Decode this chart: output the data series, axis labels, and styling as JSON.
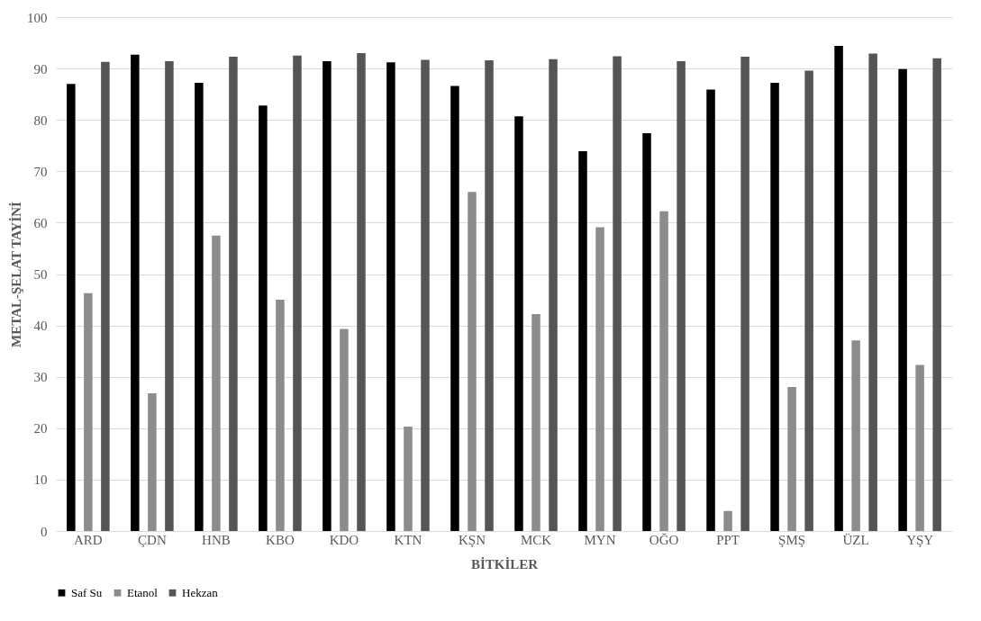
{
  "chart_data": {
    "type": "bar",
    "xlabel": "BİTKİLER",
    "ylabel": "METAL-ŞELAT TAYİNİ",
    "categories": [
      "ARD",
      "ÇDN",
      "HNB",
      "KBO",
      "KDO",
      "KTN",
      "KŞN",
      "MCK",
      "MYN",
      "OĞO",
      "PPT",
      "ŞMŞ",
      "ÜZL",
      "YŞY"
    ],
    "series": [
      {
        "name": "Saf Su",
        "color": "#000000",
        "values": [
          87,
          92.7,
          87.2,
          82.8,
          91.4,
          91.2,
          86.6,
          80.7,
          73.9,
          77.4,
          85.9,
          87.2,
          94.4,
          89.9
        ]
      },
      {
        "name": "Etanol",
        "color": "#8c8c8c",
        "values": [
          46.3,
          26.8,
          57.5,
          45,
          39.3,
          20.3,
          66,
          42.2,
          59.1,
          62.2,
          3.9,
          28,
          37.1,
          32.3
        ]
      },
      {
        "name": "Hekzan",
        "color": "#555555",
        "values": [
          91.3,
          91.4,
          92.3,
          92.5,
          93,
          91.7,
          91.6,
          91.8,
          92.4,
          91.4,
          92.3,
          89.6,
          92.9,
          92
        ]
      }
    ],
    "ylim": [
      0,
      100
    ],
    "yticks": [
      0,
      10,
      20,
      30,
      40,
      50,
      60,
      70,
      80,
      90,
      100
    ],
    "grid": "y",
    "legend": "bottom"
  }
}
